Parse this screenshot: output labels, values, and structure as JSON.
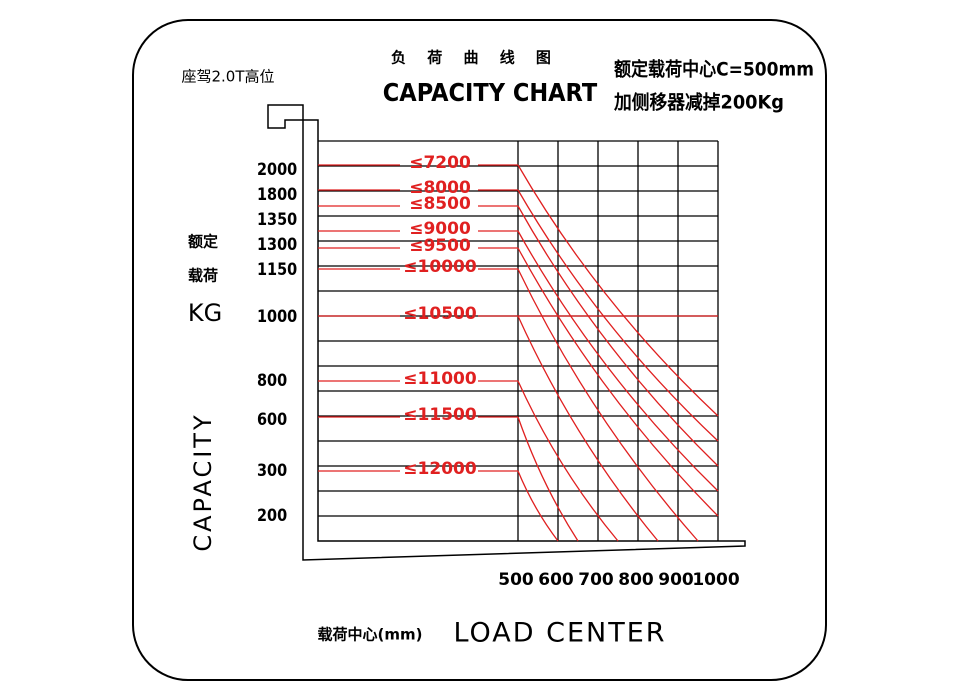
{
  "corner_label": "座驾2.0T高位",
  "title_cn": "负 荷 曲 线 图",
  "title_en": "CAPACITY CHART",
  "note_lines": [
    "额定载荷中心C=500mm",
    "加侧移器减掉200Kg"
  ],
  "y_axis_label_cn": [
    "额定",
    "载荷"
  ],
  "y_axis_unit": "KG",
  "y_axis_label_en": "CAPACITY",
  "capacity_labels": [
    "2000",
    "1800",
    "1350",
    "1300",
    "1150",
    "1000",
    "800",
    "600",
    "300",
    "200"
  ],
  "height_labels": [
    "≤7200",
    "≤8000",
    "≤8500",
    "≤9000",
    "≤9500",
    "≤10000",
    "≤10500",
    "≤11000",
    "≤11500",
    "≤12000"
  ],
  "x_labels": [
    "500",
    "600",
    "700",
    "800",
    "900",
    "1000"
  ],
  "x_axis_label_cn": "载荷中心(mm)",
  "x_axis_label_en": "LOAD CENTER"
}
